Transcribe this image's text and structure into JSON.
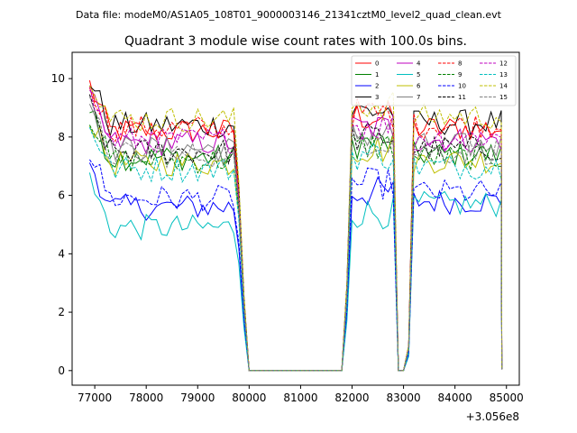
{
  "chart_data": {
    "type": "line",
    "suptitle": "Data file: modeM0/AS1A05_108T01_9000003146_21341cztM0_level2_quad_clean.evt",
    "title": "Quadrant 3 module wise count rates with 100.0s bins.",
    "xlabel": "",
    "ylabel": "",
    "x_offset_label": "+3.056e8",
    "xlim": [
      76560,
      85250
    ],
    "ylim": [
      -0.5,
      10.9
    ],
    "xticks": [
      77000,
      78000,
      79000,
      80000,
      81000,
      82000,
      83000,
      84000,
      85000
    ],
    "yticks": [
      0,
      2,
      4,
      6,
      8,
      10
    ],
    "grid": false,
    "legend": {
      "placement": "top-right",
      "ncol": 4,
      "entries": [
        "0",
        "1",
        "2",
        "3",
        "4",
        "5",
        "6",
        "7",
        "8",
        "9",
        "10",
        "11",
        "12",
        "13",
        "14",
        "15"
      ]
    },
    "segments": {
      "start": 76900,
      "step": 100,
      "seg1_end": 79800,
      "gap1": [
        80000,
        81800
      ],
      "seg2": [
        82000,
        82800
      ],
      "gap2": [
        82900,
        83000
      ],
      "seg3": [
        83200,
        84900
      ],
      "drop_value": 0.0
    },
    "series": [
      {
        "name": "0",
        "color": "#ff0000",
        "dash": false,
        "level": 8.2
      },
      {
        "name": "1",
        "color": "#008000",
        "dash": false,
        "level": 7.3
      },
      {
        "name": "2",
        "color": "#0000ff",
        "dash": false,
        "level": 5.6
      },
      {
        "name": "3",
        "color": "#000000",
        "dash": false,
        "level": 8.4
      },
      {
        "name": "4",
        "color": "#bf00bf",
        "dash": false,
        "level": 7.8
      },
      {
        "name": "5",
        "color": "#00bfbf",
        "dash": false,
        "level": 4.9
      },
      {
        "name": "6",
        "color": "#bfbf00",
        "dash": false,
        "level": 7.1
      },
      {
        "name": "7",
        "color": "#808080",
        "dash": false,
        "level": 7.6
      },
      {
        "name": "8",
        "color": "#ff0000",
        "dash": true,
        "level": 8.3
      },
      {
        "name": "9",
        "color": "#008000",
        "dash": true,
        "level": 7.2
      },
      {
        "name": "10",
        "color": "#0000ff",
        "dash": true,
        "level": 5.9
      },
      {
        "name": "11",
        "color": "#000000",
        "dash": true,
        "level": 7.5
      },
      {
        "name": "12",
        "color": "#bf00bf",
        "dash": true,
        "level": 7.9
      },
      {
        "name": "13",
        "color": "#00bfbf",
        "dash": true,
        "level": 6.9
      },
      {
        "name": "14",
        "color": "#bfbf00",
        "dash": true,
        "level": 8.6
      },
      {
        "name": "15",
        "color": "#808080",
        "dash": true,
        "level": 7.4
      }
    ]
  }
}
